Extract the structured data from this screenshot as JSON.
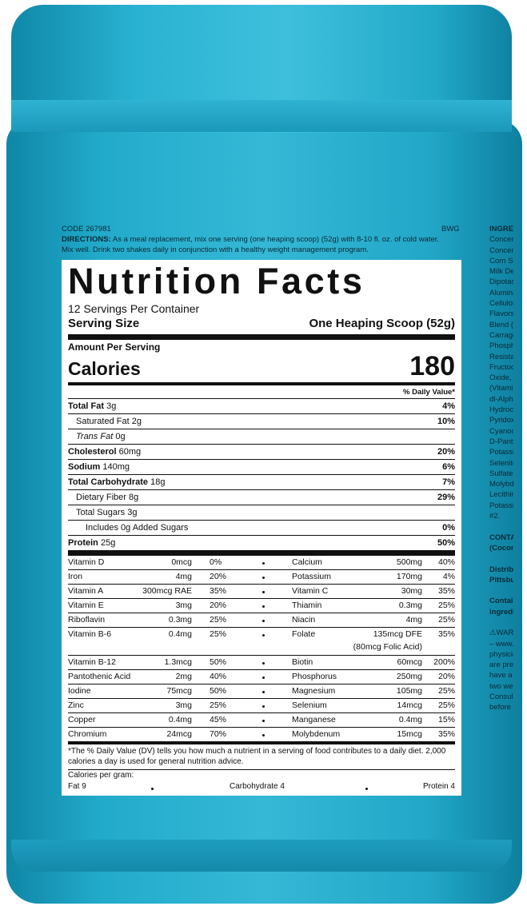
{
  "header": {
    "code": "CODE 267981",
    "bwg": "BWG",
    "directions_label": "DIRECTIONS:",
    "directions": "As a meal replacement, mix one serving (one heaping scoop) (52g) with 8-10 fl. oz. of cold water. Mix well. Drink two shakes daily in conjunction with a healthy weight management program."
  },
  "label": {
    "title": "Nutrition Facts",
    "servings_per_container": "12 Servings Per Container",
    "serving_size_label": "Serving Size",
    "serving_size_value": "One Heaping Scoop (52g)",
    "amount_per_serving": "Amount Per Serving",
    "calories_label": "Calories",
    "calories_value": "180",
    "dv_header": "% Daily Value*",
    "nutrients": [
      {
        "name": "Total Fat",
        "amount": "3g",
        "dv": "4%"
      },
      {
        "name": "Saturated Fat",
        "amount": "2g",
        "dv": "10%"
      },
      {
        "name": "Trans Fat",
        "amount": "0g"
      },
      {
        "name": "Cholesterol",
        "amount": "60mg",
        "dv": "20%"
      },
      {
        "name": "Sodium",
        "amount": "140mg",
        "dv": "6%"
      },
      {
        "name": "Total Carbohydrate",
        "amount": "18g",
        "dv": "7%"
      },
      {
        "name": "Dietary Fiber",
        "amount": "8g",
        "dv": "29%"
      },
      {
        "name": "Total Sugars",
        "amount": "3g"
      },
      {
        "name": "Includes 0g Added Sugars",
        "dv": "0%"
      },
      {
        "name": "Protein",
        "amount": "25g",
        "dv": "50%"
      }
    ],
    "vitamins": [
      [
        {
          "name": "Vitamin D",
          "amount": "0mcg",
          "dv": "0%"
        },
        {
          "name": "Calcium",
          "amount": "500mg",
          "dv": "40%"
        }
      ],
      [
        {
          "name": "Iron",
          "amount": "4mg",
          "dv": "20%"
        },
        {
          "name": "Potassium",
          "amount": "170mg",
          "dv": "4%"
        }
      ],
      [
        {
          "name": "Vitamin A",
          "amount": "300mcg RAE",
          "dv": "35%"
        },
        {
          "name": "Vitamin C",
          "amount": "30mg",
          "dv": "35%"
        }
      ],
      [
        {
          "name": "Vitamin E",
          "amount": "3mg",
          "dv": "20%"
        },
        {
          "name": "Thiamin",
          "amount": "0.3mg",
          "dv": "25%"
        }
      ],
      [
        {
          "name": "Riboflavin",
          "amount": "0.3mg",
          "dv": "25%"
        },
        {
          "name": "Niacin",
          "amount": "4mg",
          "dv": "25%"
        }
      ],
      [
        {
          "name": "Vitamin B-6",
          "amount": "0.4mg",
          "dv": "25%"
        },
        {
          "name": "Folate",
          "amount": "135mcg DFE",
          "amount_note": "(80mcg Folic Acid)",
          "dv": "35%"
        }
      ],
      [
        {
          "name": "Vitamin B-12",
          "amount": "1.3mcg",
          "dv": "50%"
        },
        {
          "name": "Biotin",
          "amount": "60mcg",
          "dv": "200%"
        }
      ],
      [
        {
          "name": "Pantothenic Acid",
          "amount": "2mg",
          "dv": "40%"
        },
        {
          "name": "Phosphorus",
          "amount": "250mg",
          "dv": "20%"
        }
      ],
      [
        {
          "name": "Iodine",
          "amount": "75mcg",
          "dv": "50%"
        },
        {
          "name": "Magnesium",
          "amount": "105mg",
          "dv": "25%"
        }
      ],
      [
        {
          "name": "Zinc",
          "amount": "3mg",
          "dv": "25%"
        },
        {
          "name": "Selenium",
          "amount": "14mcg",
          "dv": "25%"
        }
      ],
      [
        {
          "name": "Copper",
          "amount": "0.4mg",
          "dv": "45%"
        },
        {
          "name": "Manganese",
          "amount": "0.4mg",
          "dv": "15%"
        }
      ],
      [
        {
          "name": "Chromium",
          "amount": "24mcg",
          "dv": "70%"
        },
        {
          "name": "Molybdenum",
          "amount": "15mcg",
          "dv": "35%"
        }
      ]
    ],
    "footnote": "*The % Daily Value (DV) tells you how much a nutrient in a serving of food contributes to a daily diet. 2,000 calories a day is used for general nutrition advice.",
    "calories_per_gram": "Calories per gram:",
    "fat": "Fat 9",
    "carbohydrate": "Carbohydrate 4",
    "protein": "Protein 4"
  },
  "ingredients": {
    "lines": [
      "INGREDIENTS:",
      "Concentrate, N",
      "Concentrate, C",
      "Corn Syrup Sol",
      "Milk Derivative",
      "Dipotassium Ph",
      "Aluminate), Wh",
      "Cellulose Powd",
      "Flavors, Oat Br",
      "Blend (Cellulos",
      "Carrageenan),",
      "Phosphate, Calc",
      "Resistant Corn",
      "Fructooligosacc",
      "Oxide, Vitamin",
      "(Vitamin A Acet",
      "dl-Alpha Tocop",
      "Hydrochloride,",
      "Pyridoxine Hyd",
      "Cyanocobalamin",
      "D-Pantothenate",
      "Potassium Iodide",
      "Selenite, Coppe",
      "Sulfate, Chrom",
      "Molybdate, Mal",
      "Lecithin, Sucral",
      "Potassium, FD&",
      "#2.",
      "",
      "CONTAINS: Mi",
      "(Coconut).",
      "",
      "Distributed by",
      "Pittsburgh, P",
      "",
      "Contains a bioe",
      "ingredient.",
      "",
      "⚠WARNING: Can",
      "– www.P65Warni",
      "physician prior t",
      "are pregnant, nu",
      "have a medical c",
      "two weeks prior t",
      "Consult with you",
      "before any lab te"
    ]
  }
}
